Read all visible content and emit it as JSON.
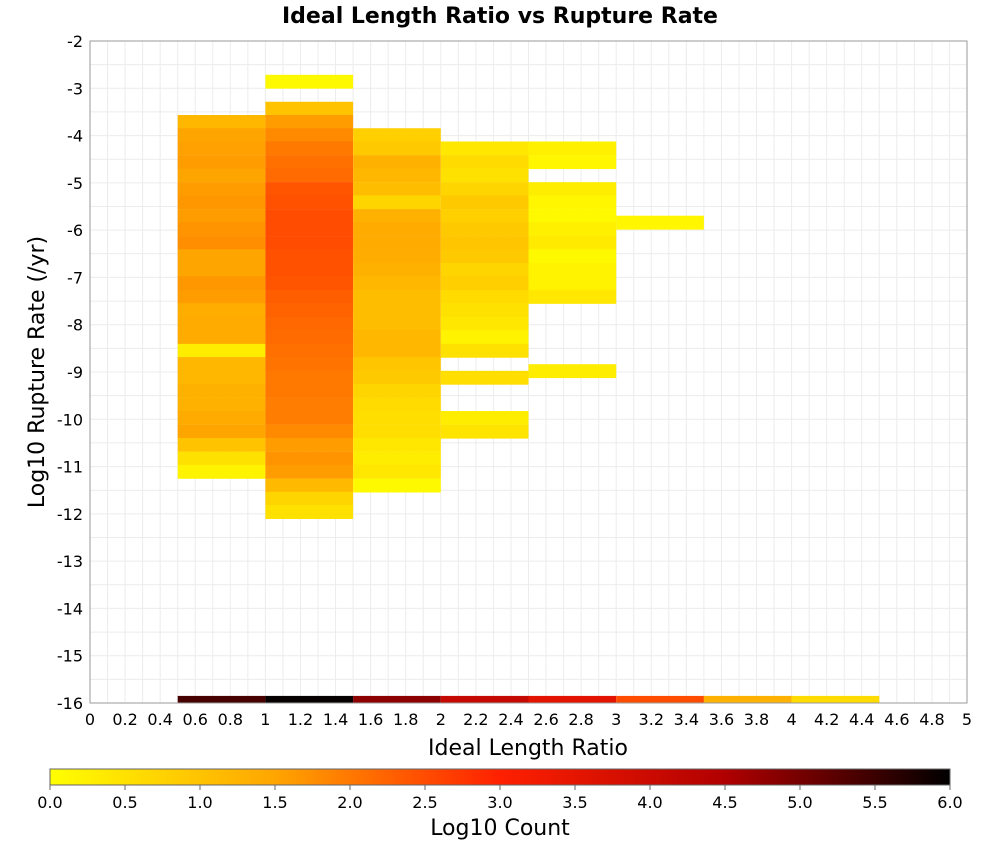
{
  "chart_data": {
    "type": "heatmap",
    "title": "Ideal Length Ratio vs Rupture Rate",
    "xlabel": "Ideal Length Ratio",
    "ylabel": "Log10 Rupture Rate (/yr)",
    "colorbar_label": "Log10 Count",
    "xlim": [
      0,
      5
    ],
    "ylim": [
      -16,
      -2
    ],
    "x_ticks": [
      "0",
      "0.2",
      "0.4",
      "0.6",
      "0.8",
      "1",
      "1.2",
      "1.4",
      "1.6",
      "1.8",
      "2",
      "2.2",
      "2.4",
      "2.6",
      "2.8",
      "3",
      "3.2",
      "3.4",
      "3.6",
      "3.8",
      "4",
      "4.2",
      "4.4",
      "4.6",
      "4.8",
      "5"
    ],
    "y_ticks": [
      "-2",
      "-3",
      "-4",
      "-5",
      "-6",
      "-7",
      "-8",
      "-9",
      "-10",
      "-11",
      "-12",
      "-13",
      "-14",
      "-15",
      "-16"
    ],
    "colorbar_ticks": [
      "0.0",
      "0.5",
      "1.0",
      "1.5",
      "2.0",
      "2.5",
      "3.0",
      "3.5",
      "4.0",
      "4.5",
      "5.0",
      "5.5",
      "6.0"
    ],
    "colorbar_range": [
      0,
      6
    ],
    "colormap": [
      "#ffff00",
      "#ffa500",
      "#ff2000",
      "#b00000",
      "#000000"
    ],
    "grid": true,
    "cell_height": 0.285,
    "columns": [
      {
        "x0": 0.5,
        "x1": 1.0,
        "cells": [
          [
            -3.85,
            1.2
          ],
          [
            -4.13,
            1.5
          ],
          [
            -4.41,
            1.55
          ],
          [
            -4.7,
            1.6
          ],
          [
            -4.98,
            1.5
          ],
          [
            -5.27,
            1.6
          ],
          [
            -5.55,
            1.65
          ],
          [
            -5.84,
            1.6
          ],
          [
            -6.12,
            1.7
          ],
          [
            -6.41,
            1.75
          ],
          [
            -6.69,
            1.5
          ],
          [
            -6.98,
            1.5
          ],
          [
            -7.26,
            1.65
          ],
          [
            -7.55,
            1.6
          ],
          [
            -7.83,
            1.35
          ],
          [
            -8.12,
            1.4
          ],
          [
            -8.4,
            1.4
          ],
          [
            -8.69,
            0.3
          ],
          [
            -8.97,
            1.2
          ],
          [
            -9.26,
            1.2
          ],
          [
            -9.54,
            1.3
          ],
          [
            -9.83,
            1.3
          ],
          [
            -10.11,
            1.4
          ],
          [
            -10.4,
            1.5
          ],
          [
            -10.68,
            1.0
          ],
          [
            -10.97,
            0.5
          ],
          [
            -11.25,
            0.2
          ]
        ]
      },
      {
        "x0": 1.0,
        "x1": 1.5,
        "cells": [
          [
            -3.0,
            0.1
          ],
          [
            -3.57,
            1.0
          ],
          [
            -3.85,
            1.6
          ],
          [
            -4.13,
            1.8
          ],
          [
            -4.41,
            2.0
          ],
          [
            -4.7,
            2.1
          ],
          [
            -4.98,
            2.15
          ],
          [
            -5.27,
            2.4
          ],
          [
            -5.55,
            2.45
          ],
          [
            -5.84,
            2.5
          ],
          [
            -6.12,
            2.5
          ],
          [
            -6.41,
            2.5
          ],
          [
            -6.69,
            2.45
          ],
          [
            -6.98,
            2.45
          ],
          [
            -7.26,
            2.4
          ],
          [
            -7.55,
            2.3
          ],
          [
            -7.83,
            2.25
          ],
          [
            -8.12,
            2.2
          ],
          [
            -8.4,
            2.15
          ],
          [
            -8.69,
            2.1
          ],
          [
            -8.97,
            2.05
          ],
          [
            -9.26,
            2.0
          ],
          [
            -9.54,
            2.0
          ],
          [
            -9.83,
            1.95
          ],
          [
            -10.11,
            1.95
          ],
          [
            -10.4,
            1.8
          ],
          [
            -10.68,
            1.6
          ],
          [
            -10.97,
            1.7
          ],
          [
            -11.25,
            1.6
          ],
          [
            -11.54,
            1.15
          ],
          [
            -11.82,
            0.7
          ],
          [
            -12.1,
            0.5
          ]
        ]
      },
      {
        "x0": 1.5,
        "x1": 2.0,
        "cells": [
          [
            -4.13,
            0.8
          ],
          [
            -4.41,
            0.9
          ],
          [
            -4.7,
            1.3
          ],
          [
            -4.98,
            1.2
          ],
          [
            -5.27,
            1.1
          ],
          [
            -5.55,
            0.7
          ],
          [
            -5.84,
            1.3
          ],
          [
            -6.12,
            1.4
          ],
          [
            -6.41,
            1.4
          ],
          [
            -6.69,
            1.35
          ],
          [
            -6.98,
            1.3
          ],
          [
            -7.26,
            1.2
          ],
          [
            -7.55,
            1.1
          ],
          [
            -7.83,
            1.1
          ],
          [
            -8.12,
            1.1
          ],
          [
            -8.4,
            1.2
          ],
          [
            -8.69,
            1.2
          ],
          [
            -8.97,
            0.95
          ],
          [
            -9.26,
            0.9
          ],
          [
            -9.54,
            0.7
          ],
          [
            -9.83,
            0.6
          ],
          [
            -10.11,
            0.55
          ],
          [
            -10.4,
            0.55
          ],
          [
            -10.68,
            0.4
          ],
          [
            -10.97,
            0.3
          ],
          [
            -11.25,
            0.4
          ],
          [
            -11.54,
            0.1
          ]
        ]
      },
      {
        "x0": 2.0,
        "x1": 2.5,
        "cells": [
          [
            -4.41,
            0.4
          ],
          [
            -4.7,
            0.6
          ],
          [
            -4.98,
            0.5
          ],
          [
            -5.27,
            0.7
          ],
          [
            -5.55,
            0.9
          ],
          [
            -5.84,
            0.8
          ],
          [
            -6.12,
            0.9
          ],
          [
            -6.41,
            0.95
          ],
          [
            -6.69,
            0.9
          ],
          [
            -6.98,
            0.7
          ],
          [
            -7.26,
            0.8
          ],
          [
            -7.55,
            0.6
          ],
          [
            -7.83,
            0.5
          ],
          [
            -8.12,
            0.4
          ],
          [
            -8.4,
            0.2
          ],
          [
            -8.69,
            0.5
          ],
          [
            -9.26,
            0.55
          ],
          [
            -10.11,
            0.3
          ],
          [
            -10.4,
            0.45
          ]
        ]
      },
      {
        "x0": 2.5,
        "x1": 3.0,
        "cells": [
          [
            -4.41,
            0.25
          ],
          [
            -4.7,
            0.15
          ],
          [
            -5.27,
            0.3
          ],
          [
            -5.55,
            0.15
          ],
          [
            -5.84,
            0.1
          ],
          [
            -6.12,
            0.25
          ],
          [
            -6.41,
            0.35
          ],
          [
            -6.69,
            0.1
          ],
          [
            -6.98,
            0.2
          ],
          [
            -7.26,
            0.2
          ],
          [
            -7.55,
            0.4
          ],
          [
            -9.12,
            0.3
          ]
        ]
      },
      {
        "x0": 3.0,
        "x1": 3.5,
        "cells": [
          [
            -5.98,
            0.15
          ]
        ]
      }
    ],
    "bottom_row": {
      "y0": -16.0,
      "y1": -15.85,
      "cells": [
        [
          0.5,
          1.0,
          5.4
        ],
        [
          1.0,
          1.5,
          5.95
        ],
        [
          1.5,
          2.0,
          4.8
        ],
        [
          2.0,
          2.5,
          4.1
        ],
        [
          2.5,
          3.0,
          3.55
        ],
        [
          3.0,
          3.5,
          2.5
        ],
        [
          3.5,
          4.0,
          1.3
        ],
        [
          4.0,
          4.5,
          0.6
        ]
      ]
    }
  }
}
